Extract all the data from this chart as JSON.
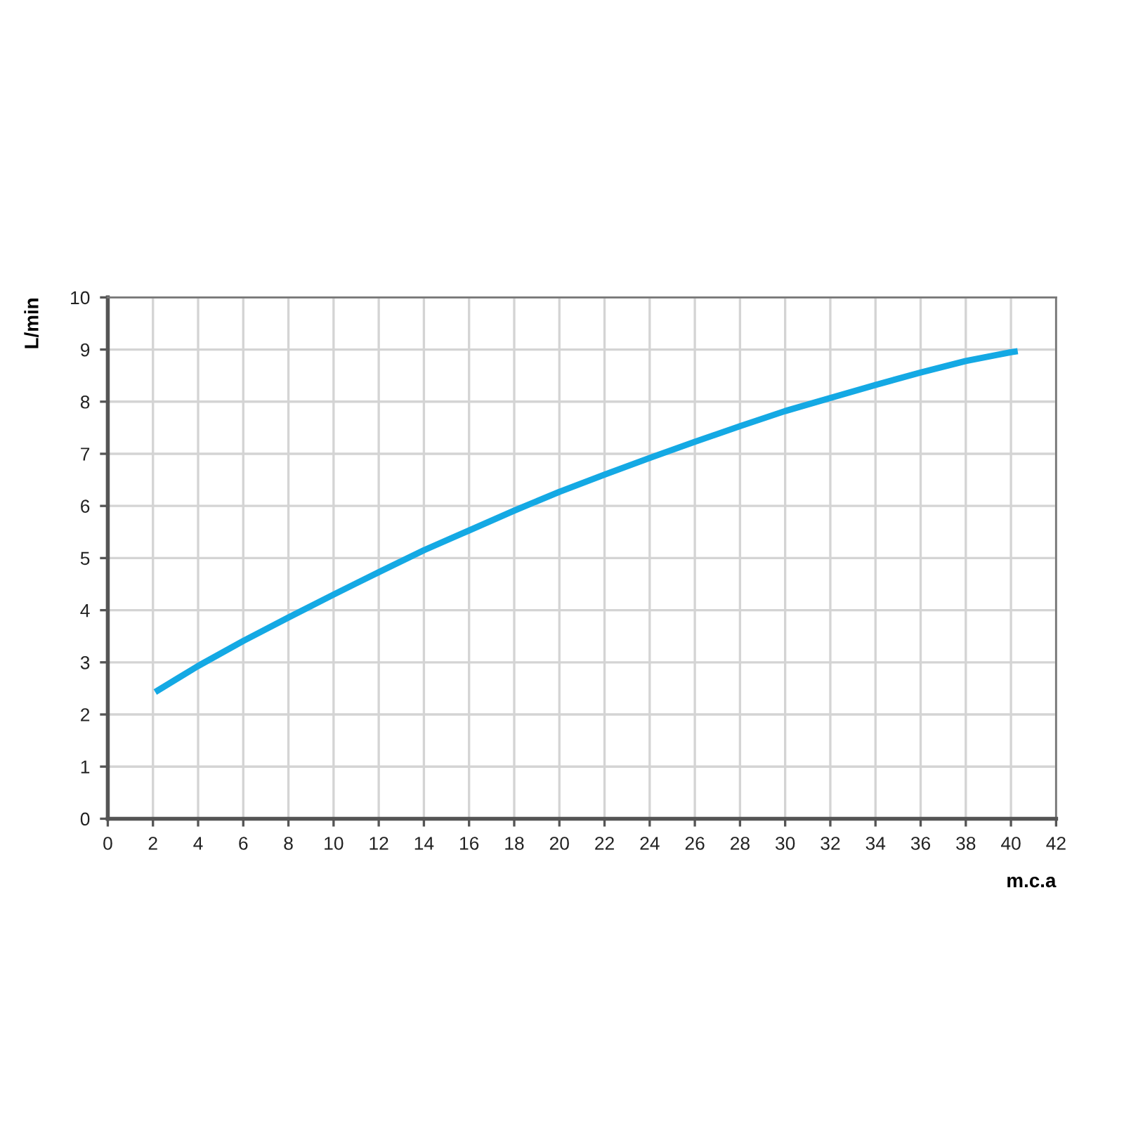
{
  "chart_data": {
    "type": "line",
    "xlabel": "m.c.a",
    "ylabel": "L/min",
    "series": [
      {
        "color": "#14a9e4",
        "x": [
          2.1,
          4,
          6,
          8,
          10,
          12,
          14,
          16,
          18,
          20,
          22,
          24,
          26,
          28,
          30,
          32,
          34,
          36,
          38,
          40,
          40.3
        ],
        "values": [
          2.43,
          2.93,
          3.41,
          3.86,
          4.3,
          4.73,
          5.15,
          5.53,
          5.91,
          6.27,
          6.6,
          6.92,
          7.23,
          7.53,
          7.82,
          8.07,
          8.32,
          8.56,
          8.78,
          8.95,
          8.97
        ]
      }
    ],
    "xlim": [
      0,
      42
    ],
    "xticks": [
      0,
      2,
      4,
      6,
      8,
      10,
      12,
      14,
      16,
      18,
      20,
      22,
      24,
      26,
      28,
      30,
      32,
      34,
      36,
      38,
      40,
      42
    ],
    "ylim": [
      0,
      10
    ],
    "yticks": [
      0,
      1,
      2,
      3,
      4,
      5,
      6,
      7,
      8,
      9,
      10
    ],
    "grid": true,
    "marker": "none",
    "line_style": "solid",
    "legend": false
  }
}
